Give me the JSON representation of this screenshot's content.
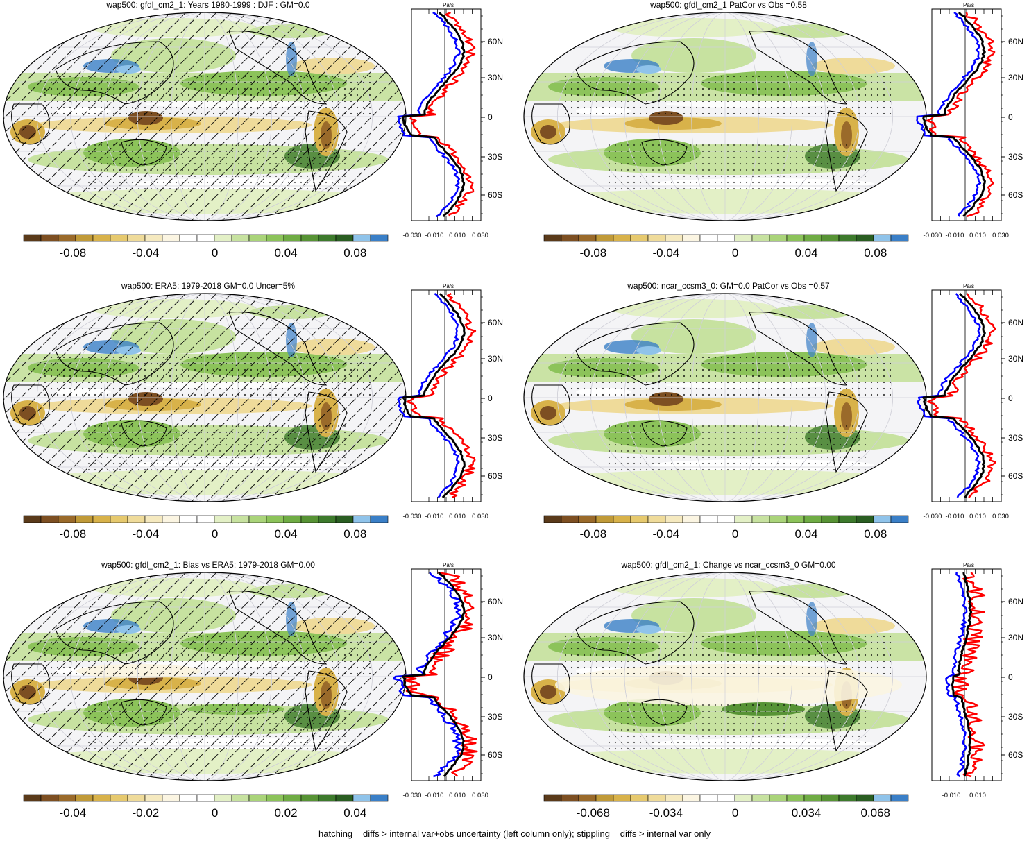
{
  "colors": {
    "scale": [
      "#5a3a1a",
      "#7d4f22",
      "#9a6a2a",
      "#c09a38",
      "#d8b24a",
      "#e6c96e",
      "#efdb9a",
      "#f5e9bf",
      "#fbf5e2",
      "#ffffff",
      "#ffffff",
      "#e3f0c6",
      "#c7e2a0",
      "#aad47a",
      "#8cc35a",
      "#6fac44",
      "#579335",
      "#3d7a2c",
      "#2a5e22",
      "#8fc3ea",
      "#3a7fc7"
    ],
    "blue_line": "#0000ff",
    "red_line": "#ff0000",
    "black_line": "#000000"
  },
  "footer": "hatching = diffs > internal var+obs uncertainty (left column only); stippling = diffs > internal var only",
  "profile_lat_labels": [
    "60N",
    "30N",
    "0",
    "30S",
    "60S"
  ],
  "profile_units": "Pa/s",
  "panels": [
    {
      "id": "p1",
      "title": "wap500: gfdl_cm2_1: Years 1980-1999 : DJF : GM=0.0",
      "hatch": true,
      "colorbar_ticks": [
        "-0.08",
        "-0.04",
        "0",
        "0.04",
        "0.08"
      ],
      "profile_ticks": [
        "-0.030",
        "-0.010",
        "0.010",
        "0.030"
      ]
    },
    {
      "id": "p2",
      "title": "wap500: gfdl_cm2_1 PatCor vs Obs =0.58",
      "hatch": false,
      "colorbar_ticks": [
        "-0.08",
        "-0.04",
        "0",
        "0.04",
        "0.08"
      ],
      "profile_ticks": [
        "-0.030",
        "-0.010",
        "0.010",
        "0.030"
      ]
    },
    {
      "id": "p3",
      "title": "wap500: ERA5: 1979-2018 GM=0.0 Uncer=5%",
      "hatch": true,
      "colorbar_ticks": [
        "-0.08",
        "-0.04",
        "0",
        "0.04",
        "0.08"
      ],
      "profile_ticks": [
        "-0.030",
        "-0.010",
        "0.010",
        "0.030"
      ]
    },
    {
      "id": "p4",
      "title": "wap500: ncar_ccsm3_0: GM=0.0 PatCor vs Obs =0.57",
      "hatch": false,
      "colorbar_ticks": [
        "-0.08",
        "-0.04",
        "0",
        "0.04",
        "0.08"
      ],
      "profile_ticks": [
        "-0.030",
        "-0.010",
        "0.010",
        "0.030"
      ]
    },
    {
      "id": "p5",
      "title": "wap500: gfdl_cm2_1: Bias vs ERA5: 1979-2018 GM=0.00",
      "hatch": true,
      "colorbar_ticks": [
        "-0.04",
        "-0.02",
        "0",
        "0.02",
        "0.04"
      ],
      "profile_ticks": [
        "-0.030",
        "-0.010",
        "0.010",
        "0.030"
      ]
    },
    {
      "id": "p6",
      "title": "wap500: gfdl_cm2_1: Change vs ncar_ccsm3_0 GM=0.00",
      "hatch": false,
      "colorbar_ticks": [
        "-0.068",
        "-0.034",
        "0",
        "0.034",
        "0.068"
      ],
      "profile_ticks": [
        "-0.010",
        "0.010"
      ]
    }
  ]
}
